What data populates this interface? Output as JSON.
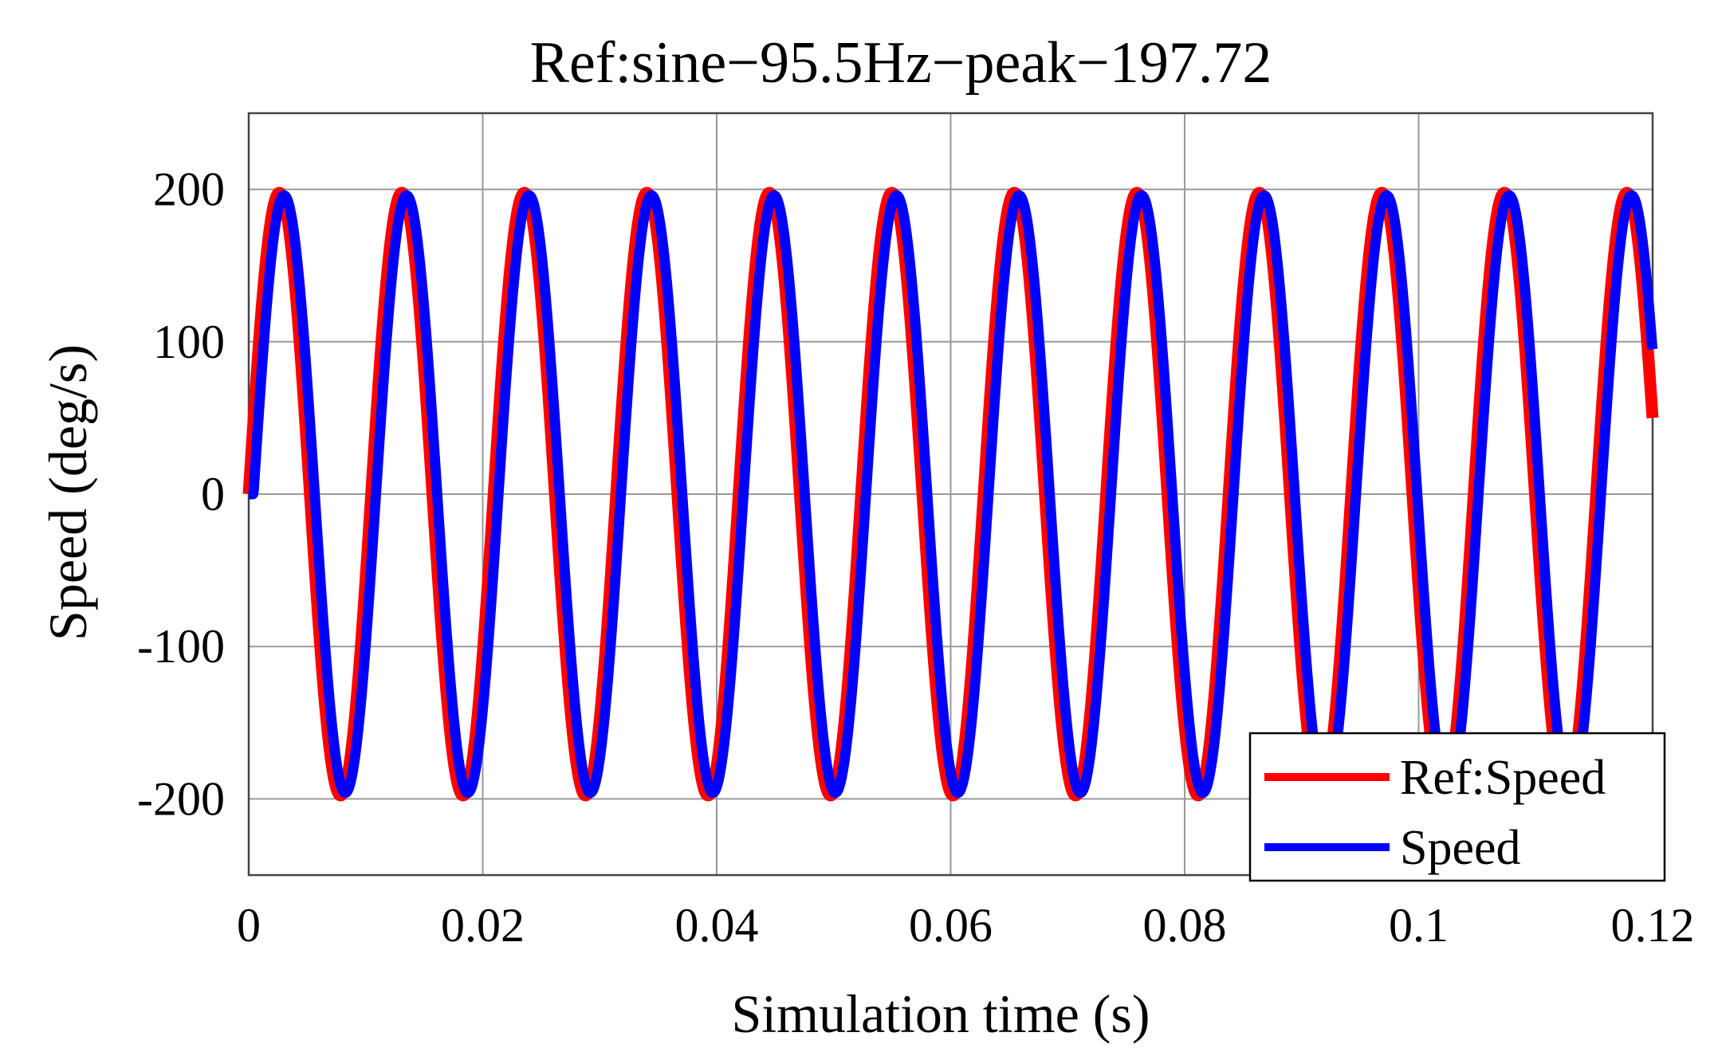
{
  "chart_data": {
    "type": "line",
    "title": "Ref:sine−95.5Hz−peak−197.72",
    "xlabel": "Simulation time (s)",
    "ylabel": "Speed (deg/s)",
    "xlim": [
      0,
      0.12
    ],
    "ylim": [
      -250,
      250
    ],
    "xticks": [
      0,
      0.02,
      0.04,
      0.06,
      0.08,
      0.1,
      0.12
    ],
    "xtick_labels": [
      "0",
      "0.02",
      "0.04",
      "0.06",
      "0.08",
      "0.1",
      "0.12"
    ],
    "yticks": [
      200,
      100,
      0,
      -100,
      -200
    ],
    "ytick_labels": [
      "200",
      "100",
      "0",
      "-100",
      "-200"
    ],
    "grid": true,
    "legend_position": "bottom-right",
    "series": [
      {
        "name": "Ref:Speed",
        "color": "#ff0000",
        "frequency_hz": 95.5,
        "amplitude": 197.72,
        "phase_lag_s": 0,
        "start_value": 0,
        "end_value": 50
      },
      {
        "name": "Speed",
        "color": "#0000ff",
        "frequency_hz": 95.5,
        "amplitude": 196,
        "phase_lag_s": 0.0004,
        "start_value": 0,
        "end_value": 95
      }
    ]
  }
}
